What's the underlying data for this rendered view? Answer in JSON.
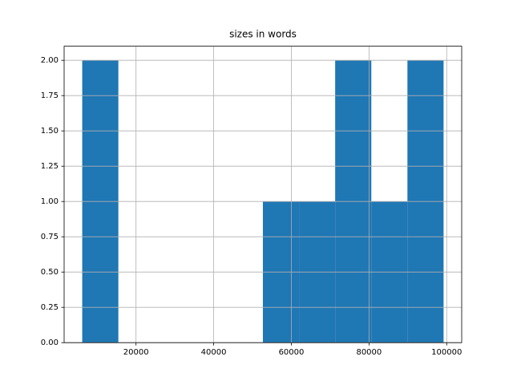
{
  "chart_data": {
    "type": "histogram",
    "title": "sizes in words",
    "bins": [
      6150,
      15455,
      24760,
      34065,
      43370,
      52675,
      61980,
      71285,
      80590,
      89895,
      99200
    ],
    "values": [
      2,
      0,
      0,
      0,
      0,
      1,
      1,
      2,
      1,
      2
    ],
    "color": "#1f77b4",
    "xlim": [
      1489,
      103868
    ],
    "xticks": [
      20000,
      40000,
      60000,
      80000,
      100000
    ],
    "ylim": [
      0,
      2.1
    ],
    "yticks": [
      {
        "value": 0,
        "label": "0.00"
      },
      {
        "value": 0.25,
        "label": "0.25"
      },
      {
        "value": 0.5,
        "label": "0.50"
      },
      {
        "value": 0.75,
        "label": "0.75"
      },
      {
        "value": 1,
        "label": "1.00"
      },
      {
        "value": 1.25,
        "label": "1.25"
      },
      {
        "value": 1.5,
        "label": "1.50"
      },
      {
        "value": 1.75,
        "label": "1.75"
      },
      {
        "value": 2,
        "label": "2.00"
      }
    ],
    "grid": true
  }
}
